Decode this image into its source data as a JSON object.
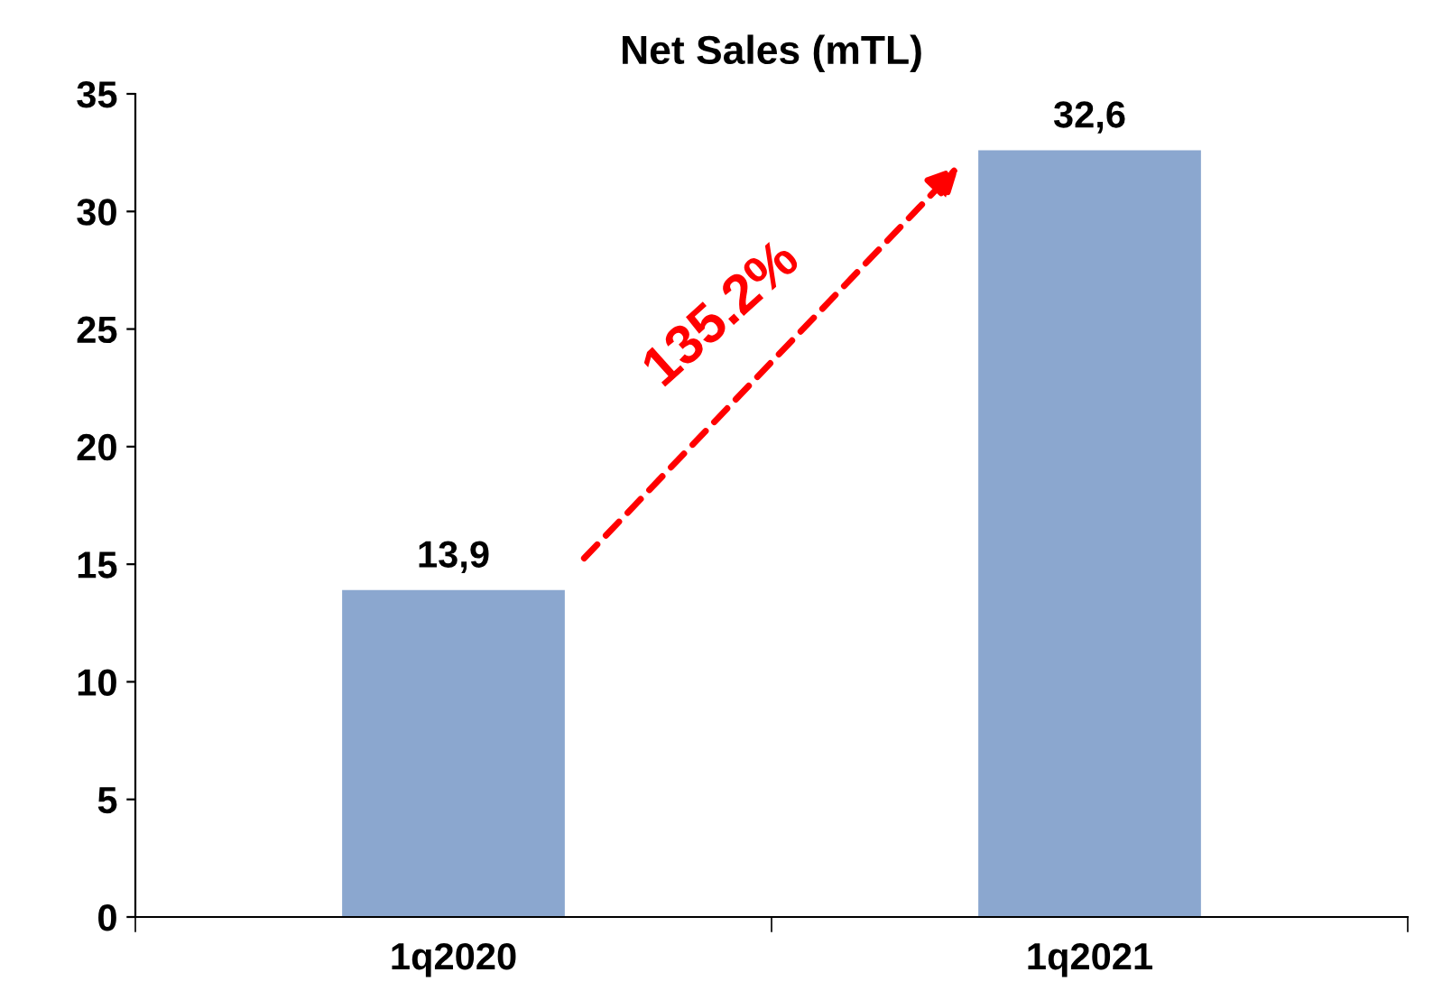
{
  "chart_data": {
    "type": "bar",
    "title": "Net Sales (mTL)",
    "categories": [
      "1q2020",
      "1q2021"
    ],
    "values": [
      13.9,
      32.6
    ],
    "value_labels": [
      "13,9",
      "32,6"
    ],
    "color": "#8ba7cf",
    "ylim": [
      0,
      35
    ],
    "yticks": [
      0,
      5,
      10,
      15,
      20,
      25,
      30,
      35
    ],
    "grid": false,
    "annotations": [
      "135.2%"
    ]
  }
}
